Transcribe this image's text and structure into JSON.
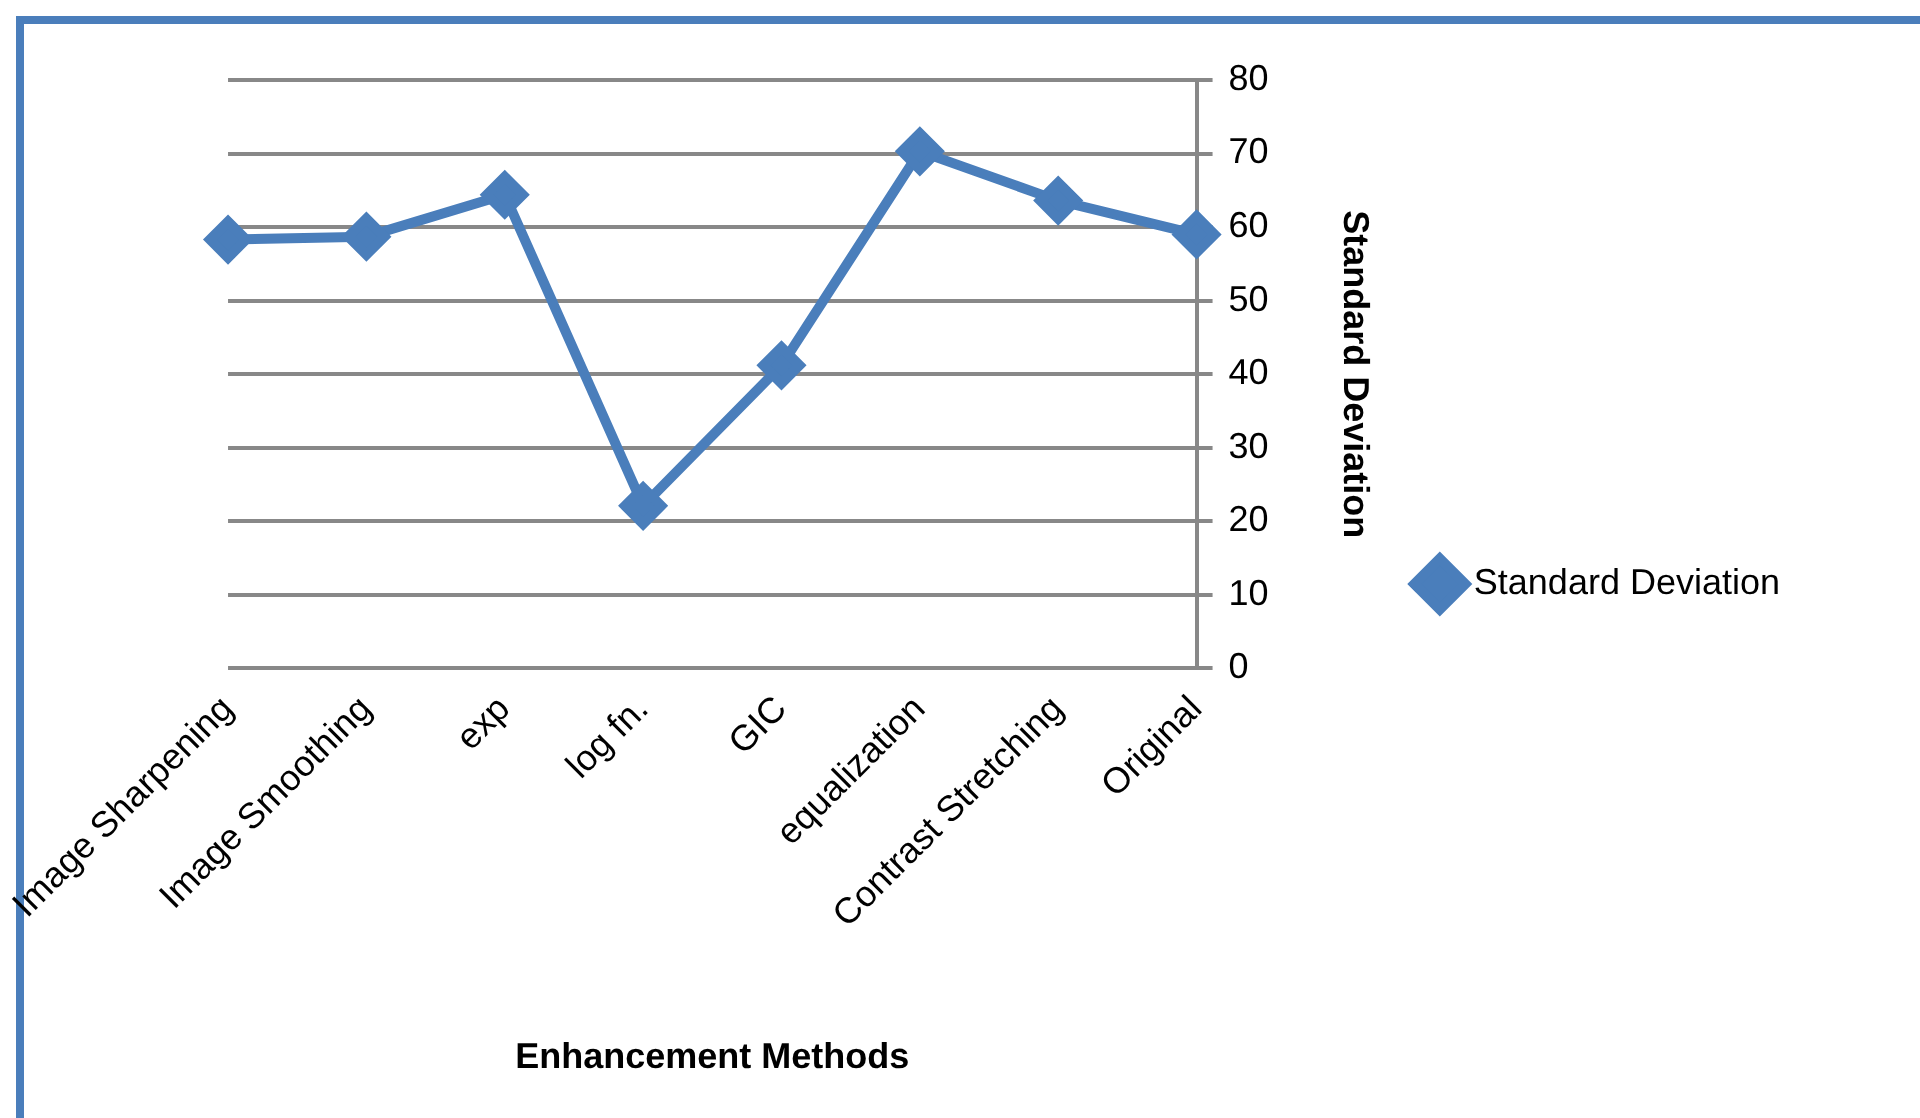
{
  "chart_data": {
    "type": "line",
    "xlabel": "Enhancement Methods",
    "ylabel": "Standard Deviation",
    "categories": [
      "Image Sharpening",
      "Image Smoothing",
      "exp",
      "log fn.",
      "GIC",
      "equalization",
      "Contrast Stretching",
      "Original"
    ],
    "series": [
      {
        "name": "Standard Deviation",
        "color": "#4a7ebb",
        "values": [
          58.3,
          58.7,
          64.4,
          22.1,
          41.2,
          70.3,
          63.6,
          59.0
        ]
      }
    ],
    "ylim": [
      0,
      80
    ],
    "yticks": [
      0,
      10,
      20,
      30,
      40,
      50,
      60,
      70,
      80
    ],
    "grid": "y",
    "legend": "right",
    "marker": "diamond",
    "line_style": "solid"
  }
}
